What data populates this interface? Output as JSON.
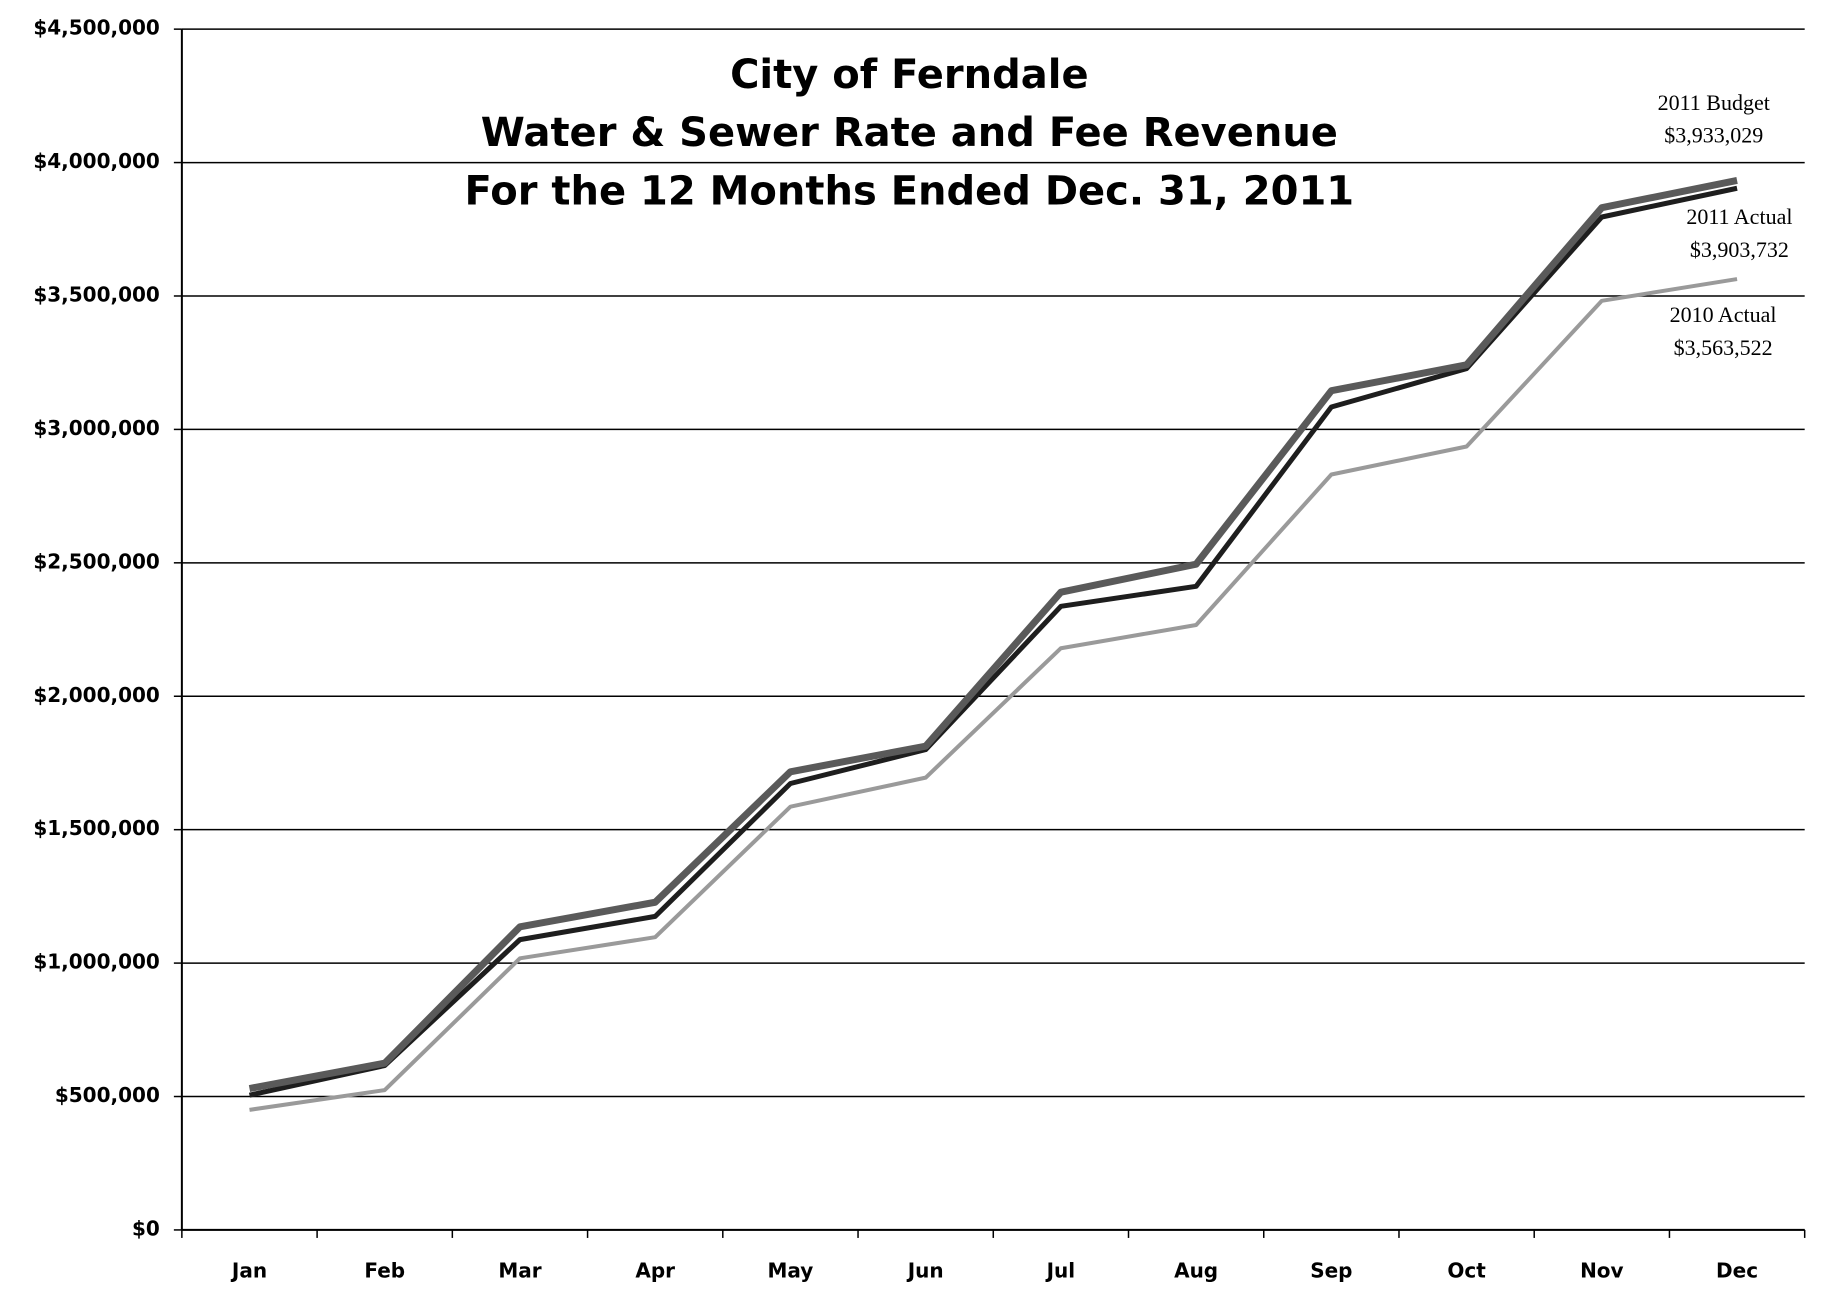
{
  "chart_data": {
    "type": "line",
    "title": [
      "City of Ferndale",
      "Water & Sewer Rate and Fee Revenue",
      "For the 12 Months Ended Dec. 31, 2011"
    ],
    "categories": [
      "Jan",
      "Feb",
      "Mar",
      "Apr",
      "May",
      "Jun",
      "Jul",
      "Aug",
      "Sep",
      "Oct",
      "Nov",
      "Dec"
    ],
    "series": [
      {
        "name": "2011 Budget",
        "color": "#5a5a5a",
        "values": [
          530000,
          625000,
          1136000,
          1228000,
          1717000,
          1813000,
          2390000,
          2495000,
          3145000,
          3242000,
          3831000,
          3933029
        ],
        "value_labels": [
          null,
          null,
          null,
          null,
          null,
          null,
          null,
          null,
          null,
          null,
          null,
          "$3,933,029"
        ]
      },
      {
        "name": "2011 Actual",
        "color": "#1e1e1e",
        "values": [
          505000,
          616000,
          1088000,
          1175000,
          1673000,
          1800000,
          2337000,
          2412000,
          3084000,
          3228000,
          3796000,
          3903732
        ],
        "value_labels": [
          null,
          null,
          null,
          null,
          null,
          null,
          null,
          null,
          null,
          null,
          null,
          "$3,903,732"
        ]
      },
      {
        "name": "2010 Actual",
        "color": "#9a9a9a",
        "values": [
          450000,
          524000,
          1018000,
          1097000,
          1586000,
          1695000,
          2180000,
          2267000,
          2831000,
          2936000,
          3482000,
          3563522
        ],
        "value_labels": [
          null,
          null,
          null,
          null,
          null,
          null,
          null,
          null,
          null,
          null,
          null,
          "$3,563,522"
        ]
      }
    ],
    "ylim": [
      0,
      4500000
    ],
    "yticks": [
      {
        "value": 0,
        "label": "$0"
      },
      {
        "value": 500000,
        "label": "$500,000"
      },
      {
        "value": 1000000,
        "label": "$1,000,000"
      },
      {
        "value": 1500000,
        "label": "$1,500,000"
      },
      {
        "value": 2000000,
        "label": "$2,000,000"
      },
      {
        "value": 2500000,
        "label": "$2,500,000"
      },
      {
        "value": 3000000,
        "label": "$3,000,000"
      },
      {
        "value": 3500000,
        "label": "$3,500,000"
      },
      {
        "value": 4000000,
        "label": "$4,000,000"
      },
      {
        "value": 4500000,
        "label": "$4,500,000"
      }
    ],
    "grid": true
  }
}
